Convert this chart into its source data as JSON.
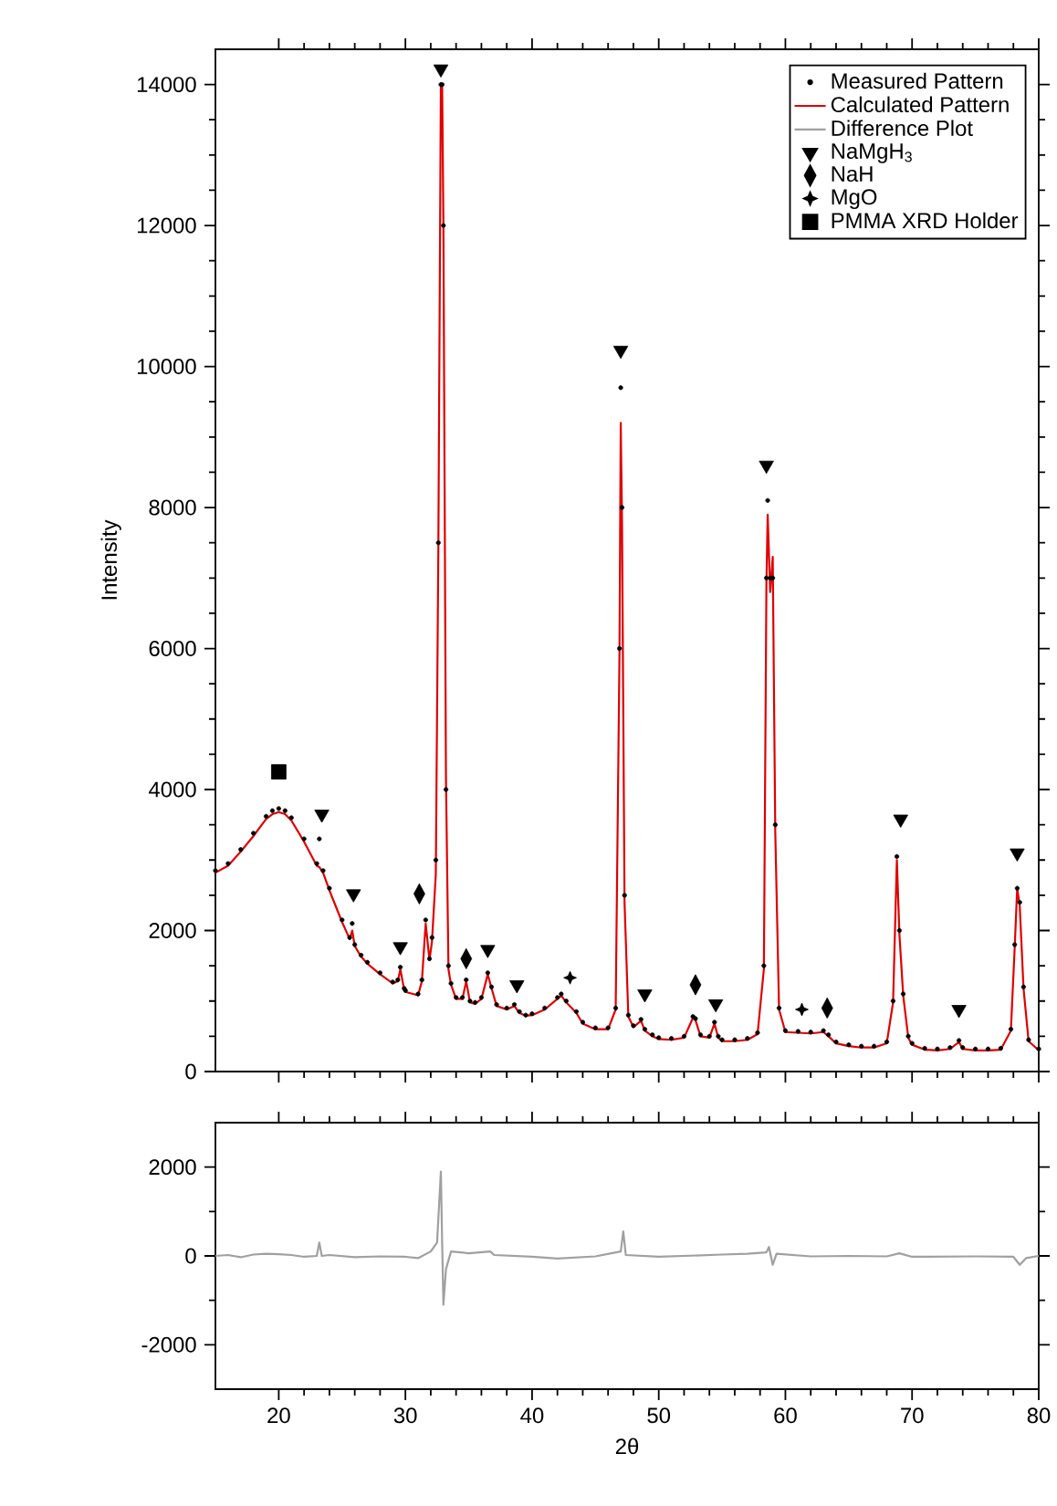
{
  "chart_data": [
    {
      "type": "line",
      "ylabel": "Intensity",
      "xlim": [
        15,
        80
      ],
      "xticks": [
        20,
        30,
        40,
        50,
        60,
        70,
        80
      ],
      "ylim": [
        0,
        14500
      ],
      "yticks": [
        0,
        2000,
        4000,
        6000,
        8000,
        10000,
        12000,
        14000
      ],
      "tick_labels": "y",
      "legend": "top right",
      "x": [
        15,
        16,
        17,
        18,
        19,
        19.5,
        20,
        20.5,
        21,
        22,
        23,
        23.2,
        23.5,
        24,
        25,
        25.6,
        25.8,
        26,
        26.5,
        27,
        28,
        29,
        29.4,
        29.6,
        29.9,
        30,
        31,
        31.3,
        31.6,
        31.9,
        32.1,
        32.4,
        32.6,
        32.8,
        32.9,
        33.0,
        33.2,
        33.4,
        33.6,
        34,
        34.5,
        34.8,
        35.1,
        35.5,
        36,
        36.5,
        36.8,
        37.2,
        38,
        38.6,
        39,
        39.5,
        40,
        41,
        42,
        42.3,
        42.7,
        43.5,
        44,
        45,
        46,
        46.6,
        46.9,
        47.0,
        47.1,
        47.3,
        47.6,
        48,
        48.6,
        48.9,
        49.5,
        50,
        51,
        52,
        52.7,
        52.9,
        53.3,
        54,
        54.4,
        54.7,
        55,
        56,
        57,
        57.8,
        58.3,
        58.5,
        58.6,
        58.8,
        59.0,
        59.2,
        59.5,
        60,
        61,
        62,
        63,
        63.4,
        64,
        65,
        66,
        67,
        68,
        68.5,
        68.8,
        69.0,
        69.3,
        69.7,
        70,
        71,
        72,
        73,
        73.7,
        74,
        75,
        76,
        77,
        77.8,
        78.1,
        78.3,
        78.5,
        78.8,
        79.2,
        80
      ],
      "series": [
        {
          "name": "Measured Pattern",
          "type": "scatter",
          "marker": "circle",
          "color": "#000000",
          "values": [
            2850,
            2950,
            3150,
            3380,
            3620,
            3700,
            3730,
            3700,
            3600,
            3300,
            2950,
            3300,
            2850,
            2600,
            2150,
            1900,
            2100,
            1800,
            1650,
            1550,
            1400,
            1270,
            1300,
            1480,
            1180,
            1150,
            1100,
            1300,
            2150,
            1600,
            1900,
            3000,
            7500,
            14000,
            14000,
            12000,
            4000,
            1500,
            1250,
            1050,
            1050,
            1300,
            1000,
            980,
            1050,
            1400,
            1200,
            950,
            900,
            950,
            850,
            800,
            820,
            900,
            1050,
            1100,
            1000,
            850,
            700,
            620,
            620,
            900,
            6000,
            9700,
            8000,
            2500,
            800,
            650,
            740,
            600,
            520,
            480,
            470,
            500,
            780,
            750,
            520,
            500,
            700,
            500,
            450,
            450,
            470,
            550,
            1500,
            7000,
            8100,
            7000,
            7000,
            3500,
            900,
            580,
            570,
            560,
            580,
            520,
            420,
            380,
            360,
            360,
            420,
            1000,
            3050,
            2000,
            1100,
            500,
            400,
            330,
            320,
            340,
            440,
            340,
            320,
            320,
            330,
            600,
            1800,
            2600,
            2400,
            1200,
            450,
            320
          ]
        },
        {
          "name": "Calculated Pattern",
          "type": "line",
          "color": "#e00000",
          "values": [
            2820,
            2920,
            3120,
            3340,
            3580,
            3650,
            3680,
            3650,
            3560,
            3260,
            2920,
            2900,
            2820,
            2570,
            2120,
            1880,
            2000,
            1780,
            1630,
            1530,
            1380,
            1250,
            1280,
            1450,
            1160,
            1130,
            1080,
            1280,
            2100,
            1580,
            1850,
            2800,
            7400,
            14000,
            14000,
            12000,
            4200,
            1450,
            1230,
            1030,
            1030,
            1280,
            980,
            960,
            1030,
            1380,
            1180,
            930,
            880,
            930,
            830,
            790,
            800,
            880,
            1030,
            1080,
            980,
            830,
            680,
            600,
            600,
            880,
            5900,
            9200,
            7800,
            2400,
            780,
            630,
            720,
            580,
            500,
            460,
            450,
            480,
            760,
            730,
            500,
            480,
            680,
            480,
            430,
            430,
            450,
            530,
            1450,
            6900,
            7900,
            6800,
            7300,
            3400,
            880,
            560,
            550,
            540,
            560,
            500,
            400,
            360,
            340,
            340,
            400,
            980,
            3000,
            1950,
            1080,
            480,
            380,
            310,
            300,
            320,
            420,
            320,
            300,
            300,
            310,
            580,
            1750,
            2600,
            2350,
            1180,
            430,
            300
          ]
        },
        {
          "name": "NaMgH$_{3}$",
          "type": "scatter",
          "marker": "triangle",
          "color": "#000000",
          "x": [
            23.4,
            25.9,
            29.6,
            32.8,
            36.5,
            38.8,
            47.0,
            48.9,
            54.5,
            58.5,
            69.1,
            73.7,
            78.3
          ],
          "values": [
            3650,
            2520,
            1770,
            14220,
            1730,
            1230,
            10230,
            1100,
            960,
            8600,
            3580,
            880,
            3100
          ]
        },
        {
          "name": "NaH",
          "type": "scatter",
          "marker": "diamond",
          "color": "#000000",
          "x": [
            31.1,
            34.8,
            52.9,
            63.3
          ],
          "values": [
            2520,
            1600,
            1230,
            900
          ]
        },
        {
          "name": "MgO",
          "type": "scatter",
          "marker": "star",
          "color": "#000000",
          "x": [
            43.0,
            61.3
          ],
          "values": [
            1330,
            880
          ]
        },
        {
          "name": "PMMA XRD Holder",
          "type": "scatter",
          "marker": "square",
          "color": "#000000",
          "x": [
            20.0
          ],
          "values": [
            4250
          ]
        }
      ]
    },
    {
      "type": "line",
      "xlabel": "2θ",
      "xlim": [
        15,
        80
      ],
      "xticks": [
        20,
        30,
        40,
        50,
        60,
        70,
        80
      ],
      "ylim": [
        -3000,
        3000
      ],
      "yticks": [
        -2000,
        0,
        2000
      ],
      "series": [
        {
          "name": "Difference Plot",
          "color": "#a0a0a0",
          "x": [
            15,
            16,
            17,
            18,
            19,
            20,
            21,
            22,
            23,
            23.2,
            23.4,
            24,
            26,
            28,
            30,
            31,
            32,
            32.5,
            32.8,
            32.9,
            33.0,
            33.2,
            33.6,
            35,
            36.7,
            37,
            40,
            42,
            45,
            47.0,
            47.2,
            47.4,
            50,
            55,
            57,
            58.5,
            58.7,
            59.0,
            59.3,
            62,
            65,
            68,
            69,
            70,
            75,
            78,
            78.5,
            79,
            80
          ],
          "values": [
            0,
            20,
            -30,
            30,
            50,
            40,
            20,
            -20,
            0,
            300,
            0,
            20,
            -30,
            -10,
            -20,
            -50,
            100,
            300,
            1900,
            300,
            -1100,
            -300,
            100,
            60,
            100,
            20,
            -20,
            -60,
            -10,
            100,
            550,
            20,
            -20,
            30,
            50,
            80,
            200,
            -200,
            50,
            -10,
            0,
            -10,
            60,
            -20,
            -10,
            -20,
            -200,
            -50,
            0
          ]
        }
      ]
    }
  ]
}
